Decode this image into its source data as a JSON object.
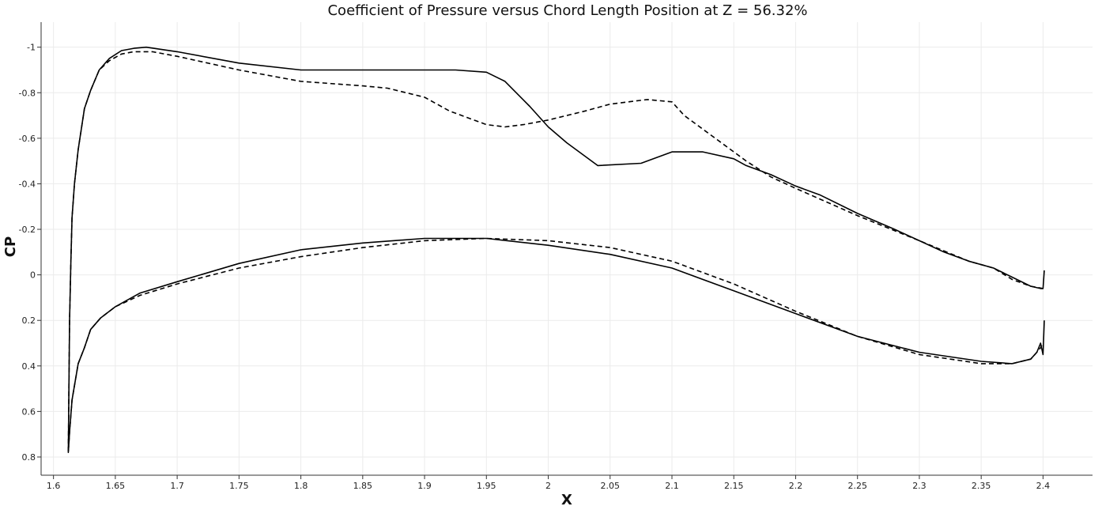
{
  "chart_data": {
    "type": "line",
    "title": "Coefficient of Pressure versus Chord Length Position at Z = 56.32%",
    "xlabel": "X",
    "ylabel": "CP",
    "xlim": [
      1.59,
      2.44
    ],
    "ylim": [
      0.88,
      -1.11
    ],
    "y_inverted": true,
    "grid": true,
    "xticks": [
      1.6,
      1.65,
      1.7,
      1.75,
      1.8,
      1.85,
      1.9,
      1.95,
      2,
      2.05,
      2.1,
      2.15,
      2.2,
      2.25,
      2.3,
      2.35,
      2.4
    ],
    "xtick_labels": [
      "1.6",
      "1.65",
      "1.7",
      "1.75",
      "1.8",
      "1.85",
      "1.9",
      "1.95",
      "2",
      "2.05",
      "2.1",
      "2.15",
      "2.2",
      "2.25",
      "2.3",
      "2.35",
      "2.4"
    ],
    "yticks": [
      -1,
      -0.8,
      -0.6,
      -0.4,
      -0.2,
      0,
      0.2,
      0.4,
      0.6,
      0.8
    ],
    "ytick_labels": [
      "-1",
      "-0.8",
      "-0.6",
      "-0.4",
      "-0.2",
      "0",
      "0.2",
      "0.4",
      "0.6",
      "0.8"
    ],
    "series": [
      {
        "style": "solid",
        "color": "#000000",
        "x": [
          2.401,
          2.4,
          2.398,
          2.39,
          2.375,
          2.36,
          2.34,
          2.32,
          2.3,
          2.28,
          2.25,
          2.22,
          2.2,
          2.18,
          2.16,
          2.15,
          2.125,
          2.1,
          2.075,
          2.04,
          2.015,
          2.0,
          1.985,
          1.965,
          1.95,
          1.925,
          1.9,
          1.85,
          1.8,
          1.75,
          1.7,
          1.675,
          1.665,
          1.655,
          1.645,
          1.637,
          1.63,
          1.625,
          1.62,
          1.617,
          1.615,
          1.614,
          1.613,
          1.612,
          1.613,
          1.615,
          1.62,
          1.625,
          1.63,
          1.638,
          1.65,
          1.67,
          1.7,
          1.75,
          1.8,
          1.85,
          1.9,
          1.95,
          2.0,
          2.05,
          2.1,
          2.15,
          2.2,
          2.25,
          2.3,
          2.35,
          2.375,
          2.39,
          2.395,
          2.398,
          2.4,
          2.401
        ],
        "y": [
          -0.02,
          0.06,
          0.06,
          0.05,
          0.01,
          -0.03,
          -0.06,
          -0.1,
          -0.15,
          -0.2,
          -0.27,
          -0.35,
          -0.39,
          -0.44,
          -0.48,
          -0.51,
          -0.54,
          -0.54,
          -0.49,
          -0.48,
          -0.58,
          -0.65,
          -0.74,
          -0.85,
          -0.89,
          -0.9,
          -0.9,
          -0.9,
          -0.9,
          -0.93,
          -0.98,
          -1.0,
          -0.995,
          -0.985,
          -0.95,
          -0.9,
          -0.81,
          -0.73,
          -0.55,
          -0.4,
          -0.25,
          -0.05,
          0.2,
          0.78,
          0.69,
          0.55,
          0.39,
          0.32,
          0.24,
          0.19,
          0.14,
          0.08,
          0.03,
          -0.05,
          -0.11,
          -0.14,
          -0.16,
          -0.16,
          -0.13,
          -0.09,
          -0.03,
          0.07,
          0.17,
          0.27,
          0.34,
          0.38,
          0.39,
          0.37,
          0.34,
          0.3,
          0.35,
          0.2
        ]
      },
      {
        "style": "dashed",
        "color": "#000000",
        "x": [
          2.4,
          2.39,
          2.375,
          2.36,
          2.34,
          2.3,
          2.25,
          2.2,
          2.18,
          2.16,
          2.13,
          2.11,
          2.1,
          2.08,
          2.05,
          2.03,
          2.0,
          1.98,
          1.965,
          1.95,
          1.92,
          1.9,
          1.87,
          1.85,
          1.8,
          1.75,
          1.7,
          1.68,
          1.665,
          1.655,
          1.645,
          1.637,
          1.63,
          1.625,
          1.62,
          1.617,
          1.615,
          1.614,
          1.613,
          1.612,
          1.613,
          1.615,
          1.62,
          1.625,
          1.63,
          1.638,
          1.65,
          1.67,
          1.7,
          1.75,
          1.8,
          1.85,
          1.9,
          1.95,
          2.0,
          2.05,
          2.1,
          2.15,
          2.2,
          2.25,
          2.3,
          2.35,
          2.375,
          2.39,
          2.395,
          2.398,
          2.4
        ],
        "y": [
          0.06,
          0.05,
          0.02,
          -0.03,
          -0.06,
          -0.15,
          -0.26,
          -0.38,
          -0.43,
          -0.5,
          -0.62,
          -0.7,
          -0.76,
          -0.77,
          -0.75,
          -0.72,
          -0.68,
          -0.66,
          -0.65,
          -0.66,
          -0.72,
          -0.78,
          -0.82,
          -0.83,
          -0.85,
          -0.9,
          -0.96,
          -0.98,
          -0.98,
          -0.97,
          -0.94,
          -0.9,
          -0.81,
          -0.73,
          -0.55,
          -0.4,
          -0.25,
          -0.05,
          0.2,
          0.78,
          0.69,
          0.55,
          0.39,
          0.32,
          0.24,
          0.19,
          0.14,
          0.09,
          0.04,
          -0.03,
          -0.08,
          -0.12,
          -0.15,
          -0.16,
          -0.15,
          -0.12,
          -0.06,
          0.04,
          0.16,
          0.27,
          0.35,
          0.39,
          0.39,
          0.37,
          0.34,
          0.32,
          0.3
        ]
      }
    ]
  }
}
